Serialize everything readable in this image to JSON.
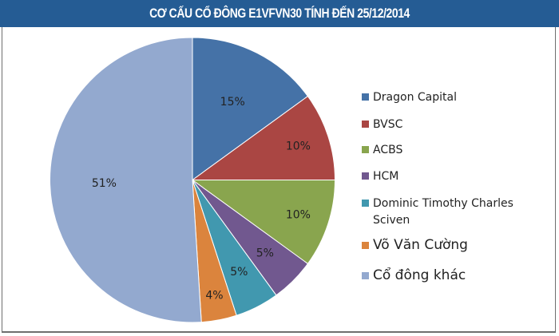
{
  "header": {
    "title": "CƠ CẤU CỔ ĐÔNG E1VFVN30 TÍNH ĐẾN 25/12/2014"
  },
  "colors": {
    "header_bg": "#255c94",
    "frame_border": "#6e6e6e"
  },
  "legend": {
    "items": [
      {
        "label": "Dragon Capital",
        "color": "#4572a7"
      },
      {
        "label": "BVSC",
        "color": "#aa4643"
      },
      {
        "label": "ACBS",
        "color": "#89a54e"
      },
      {
        "label": "HCM",
        "color": "#71588f"
      },
      {
        "label": "Dominic Timothy Charles Sciven",
        "color": "#4198af"
      },
      {
        "label": "Võ Văn Cường",
        "color": "#db843d"
      },
      {
        "label": "Cổ đông khác",
        "color": "#93a9cf"
      }
    ]
  },
  "chart_data": {
    "type": "pie",
    "title": "CƠ CẤU CỔ ĐÔNG E1VFVN30 TÍNH ĐẾN 25/12/2014",
    "categories": [
      "Dragon Capital",
      "BVSC",
      "ACBS",
      "HCM",
      "Dominic Timothy Charles Sciven",
      "Võ Văn Cường",
      "Cổ đông khác"
    ],
    "values": [
      15,
      10,
      10,
      5,
      5,
      4,
      51
    ],
    "data_labels": [
      "15%",
      "10%",
      "10%",
      "5%",
      "5%",
      "4%",
      "51%"
    ],
    "colors": [
      "#4572a7",
      "#aa4643",
      "#89a54e",
      "#71588f",
      "#4198af",
      "#db843d",
      "#93a9cf"
    ],
    "legend_position": "right",
    "start_angle": "12 o'clock, clockwise"
  }
}
